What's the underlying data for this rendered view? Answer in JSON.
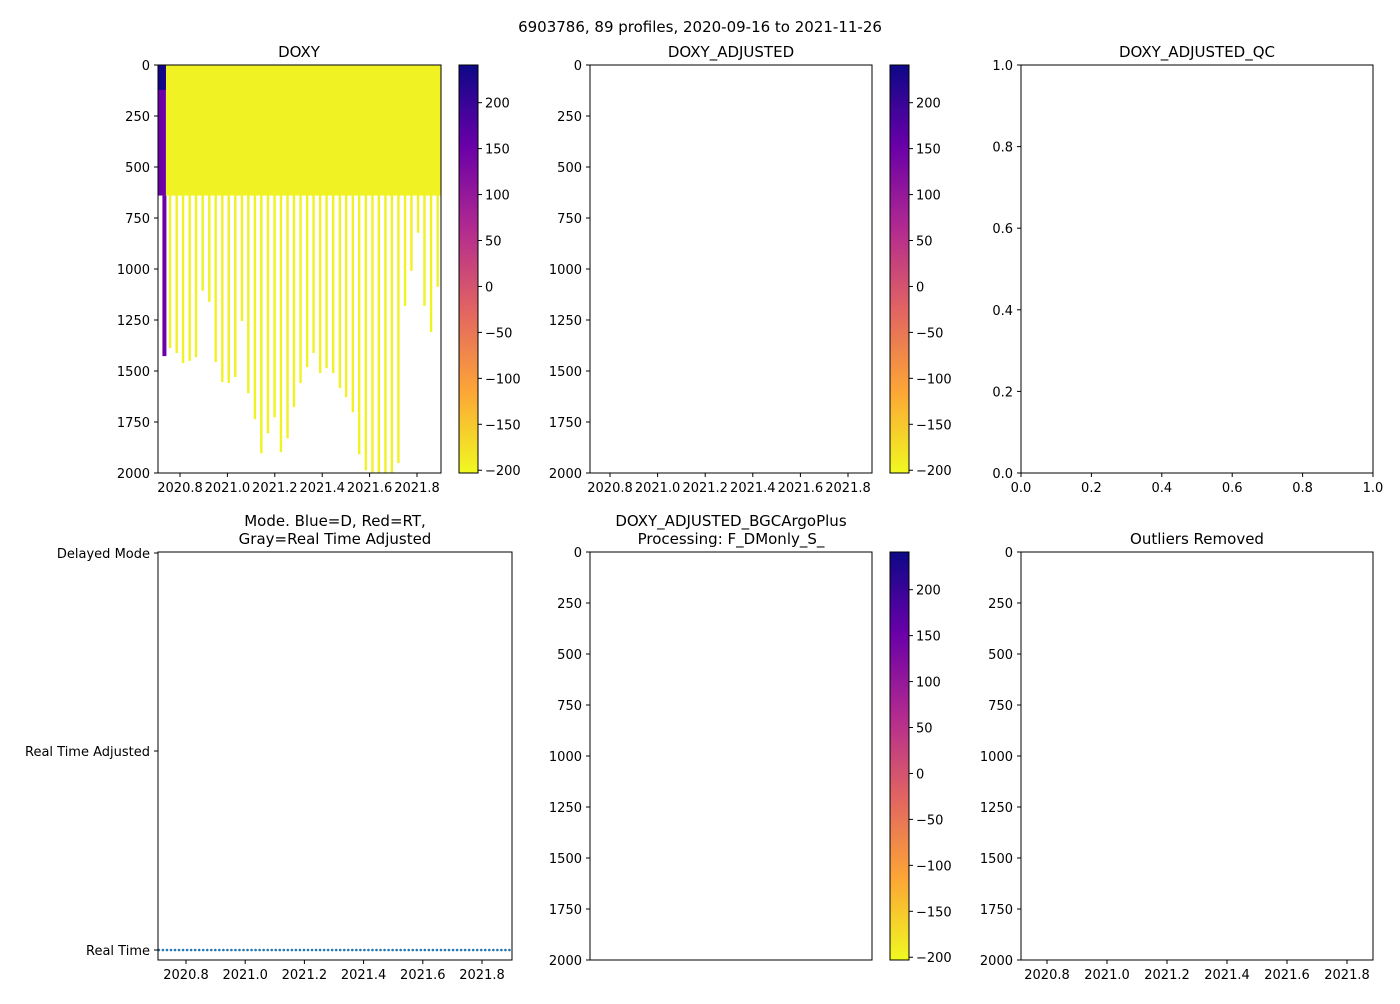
{
  "suptitle": "6903786, 89 profiles, 2020-09-16 to 2021-11-26",
  "colors": {
    "plasma_r": [
      "#f0f921",
      "#fca636",
      "#e16462",
      "#b12a90",
      "#6a00a8",
      "#0d0887"
    ],
    "mode_points": "#1f77b4"
  },
  "chart_data": [
    {
      "id": "doxy",
      "type": "heatmap",
      "title": "DOXY",
      "xlim": [
        2020.707,
        2021.904
      ],
      "ylim": [
        2000,
        0
      ],
      "xticks": [
        "2020.8",
        "2021.0",
        "2021.2",
        "2021.4",
        "2021.6",
        "2021.8"
      ],
      "yticks": [
        "0",
        "250",
        "500",
        "750",
        "1000",
        "1250",
        "1500",
        "1750",
        "2000"
      ],
      "colorbar": {
        "range": [
          -203,
          241
        ],
        "ticks": [
          "200",
          "150",
          "100",
          "50",
          "0",
          "−50",
          "−100",
          "−150",
          "−200"
        ]
      },
      "surface_layer": {
        "depth_max": 640,
        "value": -195
      },
      "first_profile": {
        "x": 2020.732,
        "depth_max": 1427,
        "value_top": 235,
        "value": 150
      },
      "profiles_x": [
        2020.758,
        2020.786,
        2020.813,
        2020.841,
        2020.868,
        2020.896,
        2020.924,
        2020.951,
        2020.979,
        2021.006,
        2021.034,
        2021.062,
        2021.089,
        2021.117,
        2021.144,
        2021.172,
        2021.2,
        2021.227,
        2021.255,
        2021.282,
        2021.31,
        2021.338,
        2021.365,
        2021.393,
        2021.42,
        2021.448,
        2021.476,
        2021.503,
        2021.531,
        2021.558,
        2021.586,
        2021.614,
        2021.641,
        2021.669,
        2021.696,
        2021.724,
        2021.752,
        2021.779,
        2021.807,
        2021.834,
        2021.862,
        2021.89
      ],
      "profiles_depth_max": [
        1387,
        1412,
        1461,
        1450,
        1432,
        1107,
        1161,
        1456,
        1554,
        1559,
        1530,
        1255,
        1609,
        1736,
        1903,
        1805,
        1727,
        1898,
        1830,
        1677,
        1559,
        1481,
        1412,
        1510,
        1486,
        1510,
        1584,
        1628,
        1702,
        1908,
        1987,
        2000,
        2000,
        2000,
        2000,
        1951,
        1181,
        1009,
        822,
        1181,
        1309,
        1088
      ],
      "profiles_value": -195
    },
    {
      "id": "doxy-adjusted",
      "type": "heatmap",
      "title": "DOXY_ADJUSTED",
      "xticks": [
        "2020.8",
        "2021.0",
        "2021.2",
        "2021.4",
        "2021.6",
        "2021.8"
      ],
      "yticks": [
        "0",
        "250",
        "500",
        "750",
        "1000",
        "1250",
        "1500",
        "1750",
        "2000"
      ],
      "colorbar": {
        "range": [
          -203,
          241
        ],
        "ticks": [
          "200",
          "150",
          "100",
          "50",
          "0",
          "−50",
          "−100",
          "−150",
          "−200"
        ]
      }
    },
    {
      "id": "doxy-adjusted-qc",
      "type": "scatter",
      "title": "DOXY_ADJUSTED_QC",
      "xlim": [
        0,
        1
      ],
      "ylim": [
        0,
        1
      ],
      "xticks": [
        "0.0",
        "0.2",
        "0.4",
        "0.6",
        "0.8",
        "1.0"
      ],
      "yticks": [
        "1.0",
        "0.8",
        "0.6",
        "0.4",
        "0.2",
        "0.0"
      ]
    },
    {
      "id": "mode",
      "type": "scatter",
      "title_lines": [
        "Mode. Blue=D, Red=RT,",
        "Gray=Real Time Adjusted"
      ],
      "xlim": [
        2020.705,
        2021.899
      ],
      "xticks": [
        "2020.8",
        "2021.0",
        "2021.2",
        "2021.4",
        "2021.6",
        "2021.8"
      ],
      "yticks": [
        "Delayed Mode",
        "Real Time Adjusted",
        "Real Time"
      ],
      "points": {
        "count": 89,
        "x_start": 2020.708,
        "x_end": 2021.904,
        "level": "Real Time"
      }
    },
    {
      "id": "bgcargoplus",
      "type": "heatmap",
      "title_lines": [
        "DOXY_ADJUSTED_BGCArgoPlus",
        "Processing: F_DMonly_S_"
      ],
      "xticks": [],
      "yticks": [
        "0",
        "250",
        "500",
        "750",
        "1000",
        "1250",
        "1500",
        "1750",
        "2000"
      ],
      "colorbar": {
        "range": [
          -203,
          241
        ],
        "ticks": [
          "200",
          "150",
          "100",
          "50",
          "0",
          "−50",
          "−100",
          "−150",
          "−200"
        ]
      }
    },
    {
      "id": "outliers",
      "type": "heatmap",
      "title": "Outliers Removed",
      "xticks": [
        "2020.8",
        "2021.0",
        "2021.2",
        "2021.4",
        "2021.6",
        "2021.8"
      ],
      "yticks": [
        "0",
        "250",
        "500",
        "750",
        "1000",
        "1250",
        "1500",
        "1750",
        "2000"
      ]
    }
  ]
}
